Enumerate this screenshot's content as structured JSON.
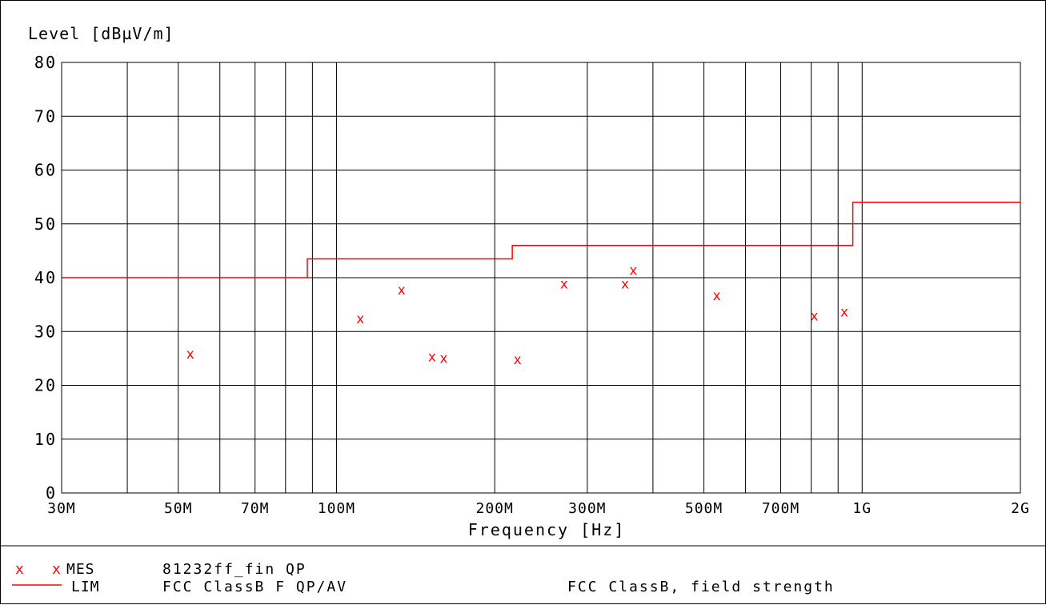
{
  "chart_data": {
    "type": "scatter",
    "ylabel": "Level [dBµV/m]",
    "xlabel": "Frequency [Hz]",
    "x_scale": "log",
    "xlim_hz": [
      30000000,
      2000000000
    ],
    "ylim": [
      0,
      80
    ],
    "y_ticks": [
      0,
      10,
      20,
      30,
      40,
      50,
      60,
      70,
      80
    ],
    "y_tick_labels": [
      "0",
      "10",
      "20",
      "30",
      "40",
      "50",
      "60",
      "70",
      "80"
    ],
    "x_tick_labels": [
      {
        "hz": 30000000,
        "label": "30M"
      },
      {
        "hz": 50000000,
        "label": "50M"
      },
      {
        "hz": 70000000,
        "label": "70M"
      },
      {
        "hz": 100000000,
        "label": "100M"
      },
      {
        "hz": 200000000,
        "label": "200M"
      },
      {
        "hz": 300000000,
        "label": "300M"
      },
      {
        "hz": 500000000,
        "label": "500M"
      },
      {
        "hz": 700000000,
        "label": "700M"
      },
      {
        "hz": 1000000000,
        "label": "1G"
      },
      {
        "hz": 2000000000,
        "label": "2G"
      }
    ],
    "x_gridlines_hz": [
      40000000,
      50000000,
      60000000,
      70000000,
      80000000,
      90000000,
      100000000,
      200000000,
      300000000,
      400000000,
      500000000,
      600000000,
      700000000,
      800000000,
      900000000,
      1000000000
    ],
    "grid": true,
    "series": [
      {
        "marker": "x",
        "color": "#ff0000",
        "points": [
          {
            "x": 52700000,
            "y": 25.7
          },
          {
            "x": 111000000,
            "y": 32.3
          },
          {
            "x": 133000000,
            "y": 37.6
          },
          {
            "x": 152000000,
            "y": 25.2
          },
          {
            "x": 160000000,
            "y": 24.9
          },
          {
            "x": 221000000,
            "y": 24.7
          },
          {
            "x": 271000000,
            "y": 38.7
          },
          {
            "x": 354000000,
            "y": 38.7
          },
          {
            "x": 367000000,
            "y": 41.3
          },
          {
            "x": 529000000,
            "y": 36.6
          },
          {
            "x": 811000000,
            "y": 32.8
          },
          {
            "x": 925000000,
            "y": 33.5
          }
        ]
      },
      {
        "style": "step",
        "color": "#ff0000",
        "points": [
          {
            "x": 30000000,
            "y": 40
          },
          {
            "x": 88000000,
            "y": 40
          },
          {
            "x": 88000000,
            "y": 43.5
          },
          {
            "x": 216000000,
            "y": 43.5
          },
          {
            "x": 216000000,
            "y": 46
          },
          {
            "x": 960000000,
            "y": 46
          },
          {
            "x": 960000000,
            "y": 54
          },
          {
            "x": 2000000000,
            "y": 54
          }
        ]
      }
    ]
  },
  "legend": {
    "rows": [
      {
        "mark": "x",
        "prefix": "x",
        "tag": "MES",
        "name": "81232ff_fin QP",
        "desc": ""
      },
      {
        "mark": "line",
        "prefix": "",
        "tag": "LIM",
        "name": "FCC ClassB F QP/AV",
        "desc": "FCC ClassB, field strength"
      }
    ]
  },
  "colors": {
    "series": "#ff0000",
    "axis": "#000000"
  }
}
